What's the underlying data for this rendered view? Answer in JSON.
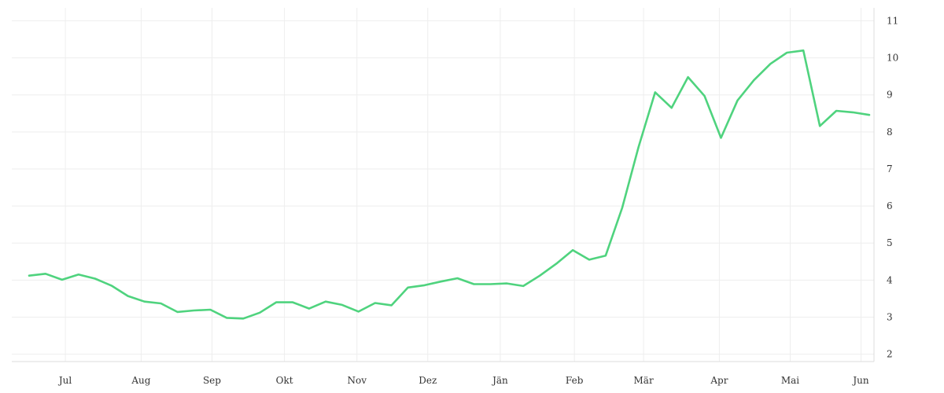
{
  "chart_data": {
    "type": "line",
    "x_axis": {
      "labels": [
        "Jul",
        "Aug",
        "Sep",
        "Okt",
        "Nov",
        "Dez",
        "Jän",
        "Feb",
        "Mär",
        "Apr",
        "Mai",
        "Jun"
      ],
      "label_positions": [
        2.2,
        6.8,
        11.1,
        15.5,
        19.9,
        24.2,
        28.6,
        33.1,
        37.3,
        41.9,
        46.2,
        50.5
      ]
    },
    "y_axis": {
      "ticks": [
        2,
        3,
        4,
        5,
        6,
        7,
        8,
        9,
        10,
        11
      ],
      "range": [
        1.8,
        11.35
      ],
      "position": "right"
    },
    "grid": true,
    "colors": {
      "line": "#4fd37e",
      "grid": "#eeeeee",
      "text": "#333333"
    },
    "series": [
      {
        "values": [
          4.12,
          4.17,
          4.01,
          4.15,
          4.04,
          3.85,
          3.57,
          3.42,
          3.37,
          3.14,
          3.18,
          3.2,
          2.98,
          2.96,
          3.12,
          3.4,
          3.4,
          3.23,
          3.42,
          3.33,
          3.15,
          3.38,
          3.32,
          3.8,
          3.86,
          3.96,
          4.05,
          3.89,
          3.89,
          3.91,
          3.84,
          4.12,
          4.44,
          4.81,
          4.55,
          4.66,
          5.95,
          7.6,
          9.07,
          8.65,
          9.48,
          8.97,
          7.84,
          8.85,
          9.4,
          9.84,
          10.14,
          10.2,
          8.16,
          8.57,
          8.53,
          8.46
        ]
      }
    ]
  }
}
